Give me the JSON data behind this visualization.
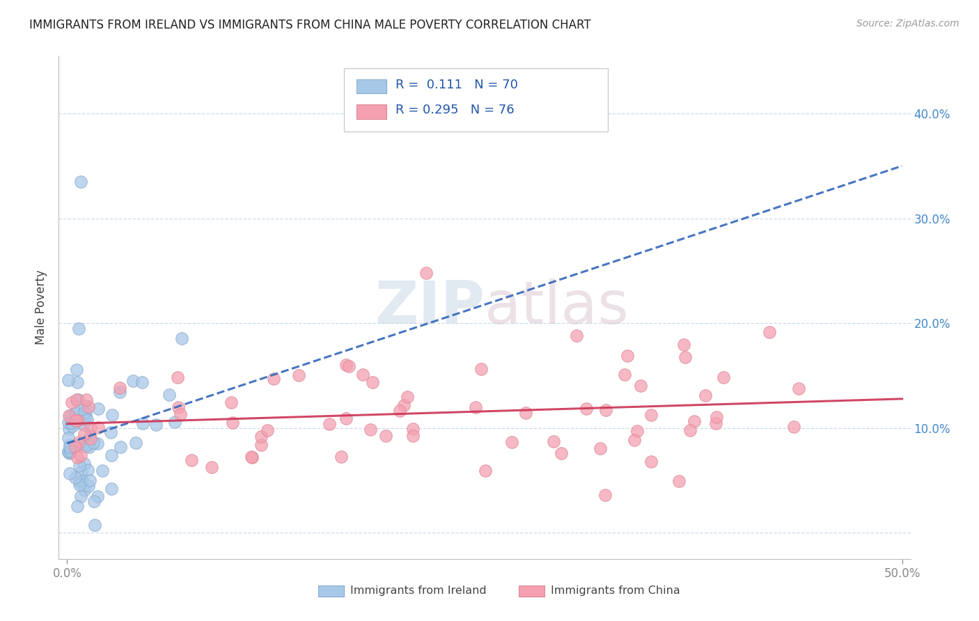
{
  "title": "IMMIGRANTS FROM IRELAND VS IMMIGRANTS FROM CHINA MALE POVERTY CORRELATION CHART",
  "source": "Source: ZipAtlas.com",
  "ylabel": "Male Poverty",
  "xlim": [
    -0.005,
    0.505
  ],
  "ylim": [
    -0.025,
    0.455
  ],
  "xtick_positions": [
    0.0,
    0.5
  ],
  "xtick_labels": [
    "0.0%",
    "50.0%"
  ],
  "ytick_positions": [
    0.0,
    0.1,
    0.2,
    0.3,
    0.4
  ],
  "ytick_labels_right": [
    "",
    "10.0%",
    "20.0%",
    "30.0%",
    "40.0%"
  ],
  "ireland_color": "#A8C8E8",
  "ireland_edge_color": "#88AACE",
  "china_color": "#F4A0B0",
  "china_edge_color": "#DD8898",
  "ireland_R": 0.111,
  "ireland_N": 70,
  "china_R": 0.295,
  "china_N": 76,
  "ireland_line_color": "#3366BB",
  "china_line_color": "#CC3355",
  "legend_R_color": "#2255AA",
  "legend_N_color": "#DD3300",
  "watermark": "ZIPatlas",
  "grid_color": "#C8D8E8",
  "seed": 12345
}
